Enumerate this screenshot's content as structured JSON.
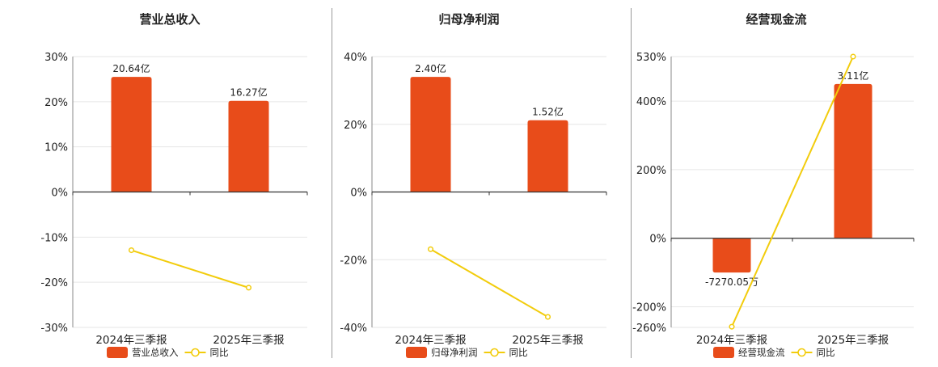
{
  "colors": {
    "bar": "#E84C1A",
    "line": "#F2CC0C",
    "grid": "#e6e6e6",
    "axis": "#333333",
    "text": "#222222"
  },
  "chart_data": [
    {
      "type": "bar",
      "title": "营业总收入",
      "categories": [
        "2024年三季报",
        "2025年三季报"
      ],
      "ylim": [
        -30,
        30
      ],
      "yticks": [
        30,
        20,
        10,
        0,
        -10,
        -20,
        -30
      ],
      "ytick_labels": [
        "30%",
        "20%",
        "10%",
        "0%",
        "-10%",
        "-20%",
        "-30%"
      ],
      "bar_values": [
        25.5,
        20.2
      ],
      "bar_labels": [
        "20.64亿",
        "16.27亿"
      ],
      "line_values": [
        -12.9,
        -21.2
      ],
      "legend": {
        "bar": "营业总收入",
        "line": "同比"
      },
      "grid": true,
      "legend_position": "bottom-center"
    },
    {
      "type": "bar",
      "title": "归母净利润",
      "categories": [
        "2024年三季报",
        "2025年三季报"
      ],
      "ylim": [
        -40,
        40
      ],
      "yticks": [
        40,
        20,
        0,
        -20,
        -40
      ],
      "ytick_labels": [
        "40%",
        "20%",
        "0%",
        "-20%",
        "-40%"
      ],
      "bar_values": [
        34,
        21.2
      ],
      "bar_labels": [
        "2.40亿",
        "1.52亿"
      ],
      "line_values": [
        -16.9,
        -36.9
      ],
      "legend": {
        "bar": "归母净利润",
        "line": "同比"
      },
      "grid": true,
      "legend_position": "bottom-center"
    },
    {
      "type": "bar",
      "title": "经营现金流",
      "categories": [
        "2024年三季报",
        "2025年三季报"
      ],
      "ylim": [
        -260,
        530
      ],
      "yticks": [
        530,
        400,
        200,
        0,
        -200,
        -260
      ],
      "ytick_labels": [
        "530%",
        "400%",
        "200%",
        "0%",
        "-200%",
        "-260%"
      ],
      "bar_values": [
        -100,
        450
      ],
      "bar_labels": [
        "-7270.05万",
        "3.11亿"
      ],
      "line_values": [
        -258,
        530
      ],
      "legend": {
        "bar": "经营现金流",
        "line": "同比"
      },
      "grid": true,
      "legend_position": "bottom-center"
    }
  ]
}
